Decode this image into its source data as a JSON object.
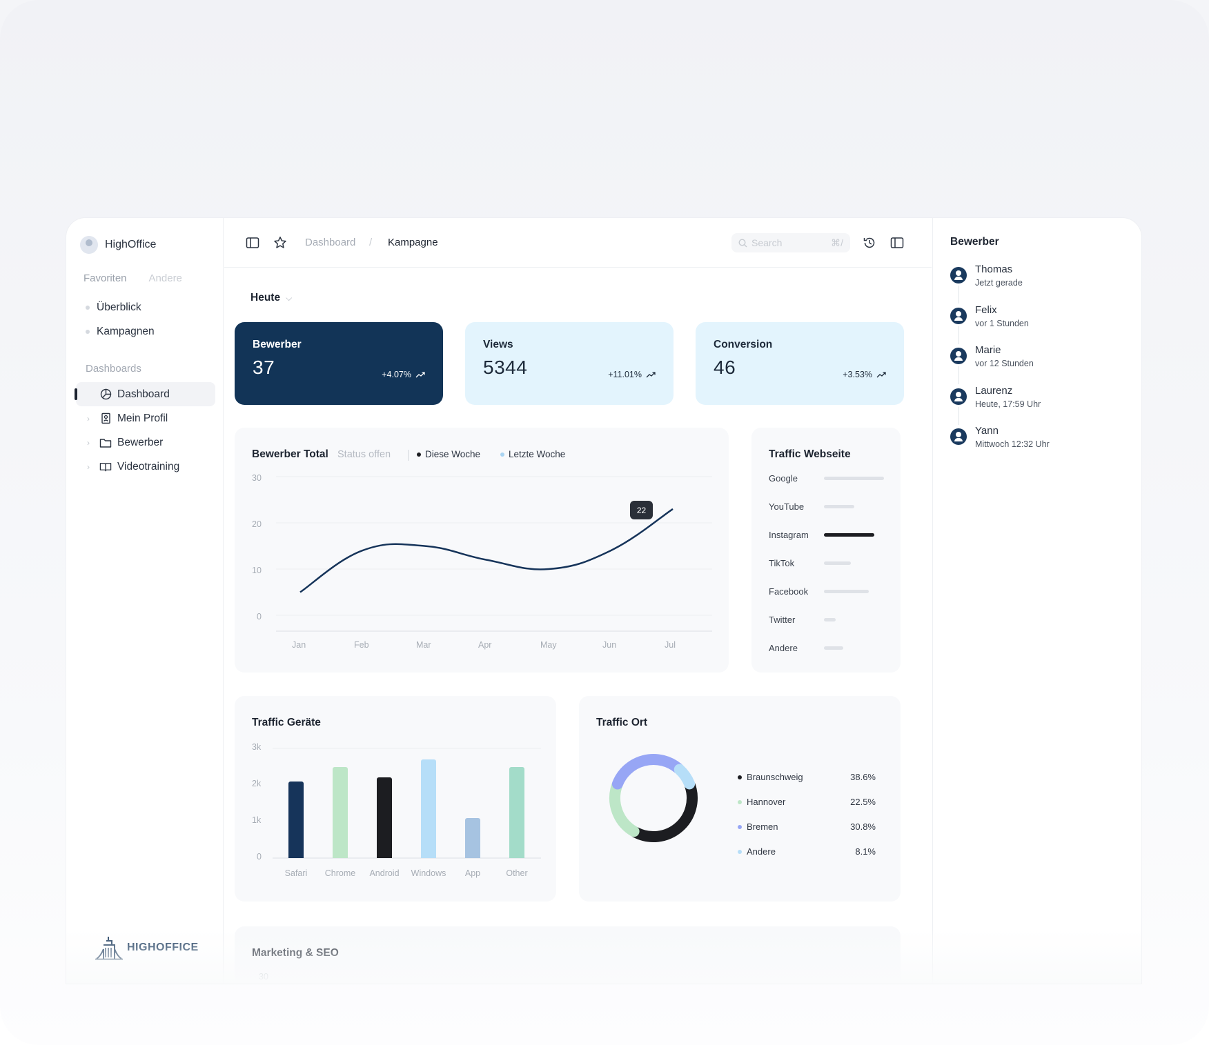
{
  "app": {
    "name": "HighOffice",
    "logo_text": "HIGHOFFICE"
  },
  "sidebar": {
    "fav_tab_active": "Favoriten",
    "fav_tab_other": "Andere",
    "favorites": [
      {
        "label": "Überblick"
      },
      {
        "label": "Kampagnen"
      }
    ],
    "dashboards_title": "Dashboards",
    "dashboards": [
      {
        "label": "Dashboard",
        "icon": "pie-chart-icon",
        "active": true
      },
      {
        "label": "Mein Profil",
        "icon": "id-card-icon"
      },
      {
        "label": "Bewerber",
        "icon": "folder-icon"
      },
      {
        "label": "Videotraining",
        "icon": "book-open-icon"
      }
    ]
  },
  "header": {
    "breadcrumb_parent": "Dashboard",
    "breadcrumb_sep": "/",
    "breadcrumb_current": "Kampagne",
    "search_placeholder": "Search",
    "search_shortcut": "⌘/"
  },
  "period": {
    "label": "Heute"
  },
  "kpis": [
    {
      "title": "Bewerber",
      "value": "37",
      "delta": "+4.07%"
    },
    {
      "title": "Views",
      "value": "5344",
      "delta": "+11.01%"
    },
    {
      "title": "Conversion",
      "value": "46",
      "delta": "+3.53%"
    }
  ],
  "colors": {
    "primary_dark": "#123457",
    "light_blue": "#e3f4fd",
    "accent_black": "#1c1d21"
  },
  "line_card": {
    "title": "Bewerber Total",
    "status": "Status offen",
    "legend_this": "Diese Woche",
    "legend_last": "Letzte Woche",
    "tooltip": "22"
  },
  "traffic_web": {
    "title": "Traffic Webseite",
    "rows": [
      {
        "name": "Google",
        "share": 0.3
      },
      {
        "name": "YouTube",
        "share": 0.15
      },
      {
        "name": "Instagram",
        "share": 0.25,
        "highlight": true
      },
      {
        "name": "TikTok",
        "share": 0.135
      },
      {
        "name": "Facebook",
        "share": 0.225
      },
      {
        "name": "Twitter",
        "share": 0.06
      },
      {
        "name": "Andere",
        "share": 0.095
      }
    ]
  },
  "traffic_devices": {
    "title": "Traffic Geräte"
  },
  "traffic_location": {
    "title": "Traffic Ort",
    "legend": [
      {
        "name": "Braunschweig",
        "value": "38.6%",
        "color": "#1c1d21"
      },
      {
        "name": "Hannover",
        "value": "22.5%",
        "color": "#bde6c7"
      },
      {
        "name": "Bremen",
        "value": "30.8%",
        "color": "#97a6f5"
      },
      {
        "name": "Andere",
        "value": "8.1%",
        "color": "#b6def8"
      }
    ]
  },
  "marketing": {
    "title": "Marketing & SEO",
    "axis_top": "30"
  },
  "chart_data": [
    {
      "type": "line",
      "title": "Bewerber Total",
      "x": [
        "Jan",
        "Feb",
        "Mar",
        "Apr",
        "May",
        "Jun",
        "Jul"
      ],
      "x_tick_labels": [
        "Jan",
        "Feb",
        "Mar",
        "Apr",
        "May",
        "Jun",
        "Jul"
      ],
      "y_ticks": [
        "30",
        "20",
        "10",
        "0"
      ],
      "ylim": [
        0,
        30
      ],
      "series": [
        {
          "name": "Diese Woche",
          "values": [
            5,
            14,
            15,
            12,
            10,
            14,
            23
          ],
          "color": "#16345a"
        }
      ],
      "annotation": {
        "x": "Jun",
        "value": 22
      }
    },
    {
      "type": "bar",
      "title": "Traffic Geräte",
      "categories": [
        "Safari",
        "Chrome",
        "Android",
        "Windows",
        "App",
        "Other"
      ],
      "values": [
        2100,
        2500,
        2200,
        2700,
        1100,
        2500
      ],
      "colors": [
        "#16345a",
        "#bde6c7",
        "#1c1d21",
        "#b6def8",
        "#a6c3e1",
        "#a3dcc9"
      ],
      "y_ticks": [
        "3k",
        "2k",
        "1k",
        "0"
      ],
      "ylim": [
        0,
        3000
      ]
    },
    {
      "type": "pie",
      "title": "Traffic Ort",
      "categories": [
        "Braunschweig",
        "Hannover",
        "Bremen",
        "Andere"
      ],
      "values": [
        38.6,
        22.5,
        30.8,
        8.1
      ],
      "colors": [
        "#1c1d21",
        "#bde6c7",
        "#97a6f5",
        "#b6def8"
      ]
    }
  ],
  "activity": {
    "title": "Bewerber",
    "items": [
      {
        "name": "Thomas",
        "time": "Jetzt gerade"
      },
      {
        "name": "Felix",
        "time": "vor 1 Stunden"
      },
      {
        "name": "Marie",
        "time": "vor 12 Stunden"
      },
      {
        "name": "Laurenz",
        "time": "Heute, 17:59 Uhr"
      },
      {
        "name": "Yann",
        "time": "Mittwoch 12:32 Uhr"
      }
    ]
  }
}
